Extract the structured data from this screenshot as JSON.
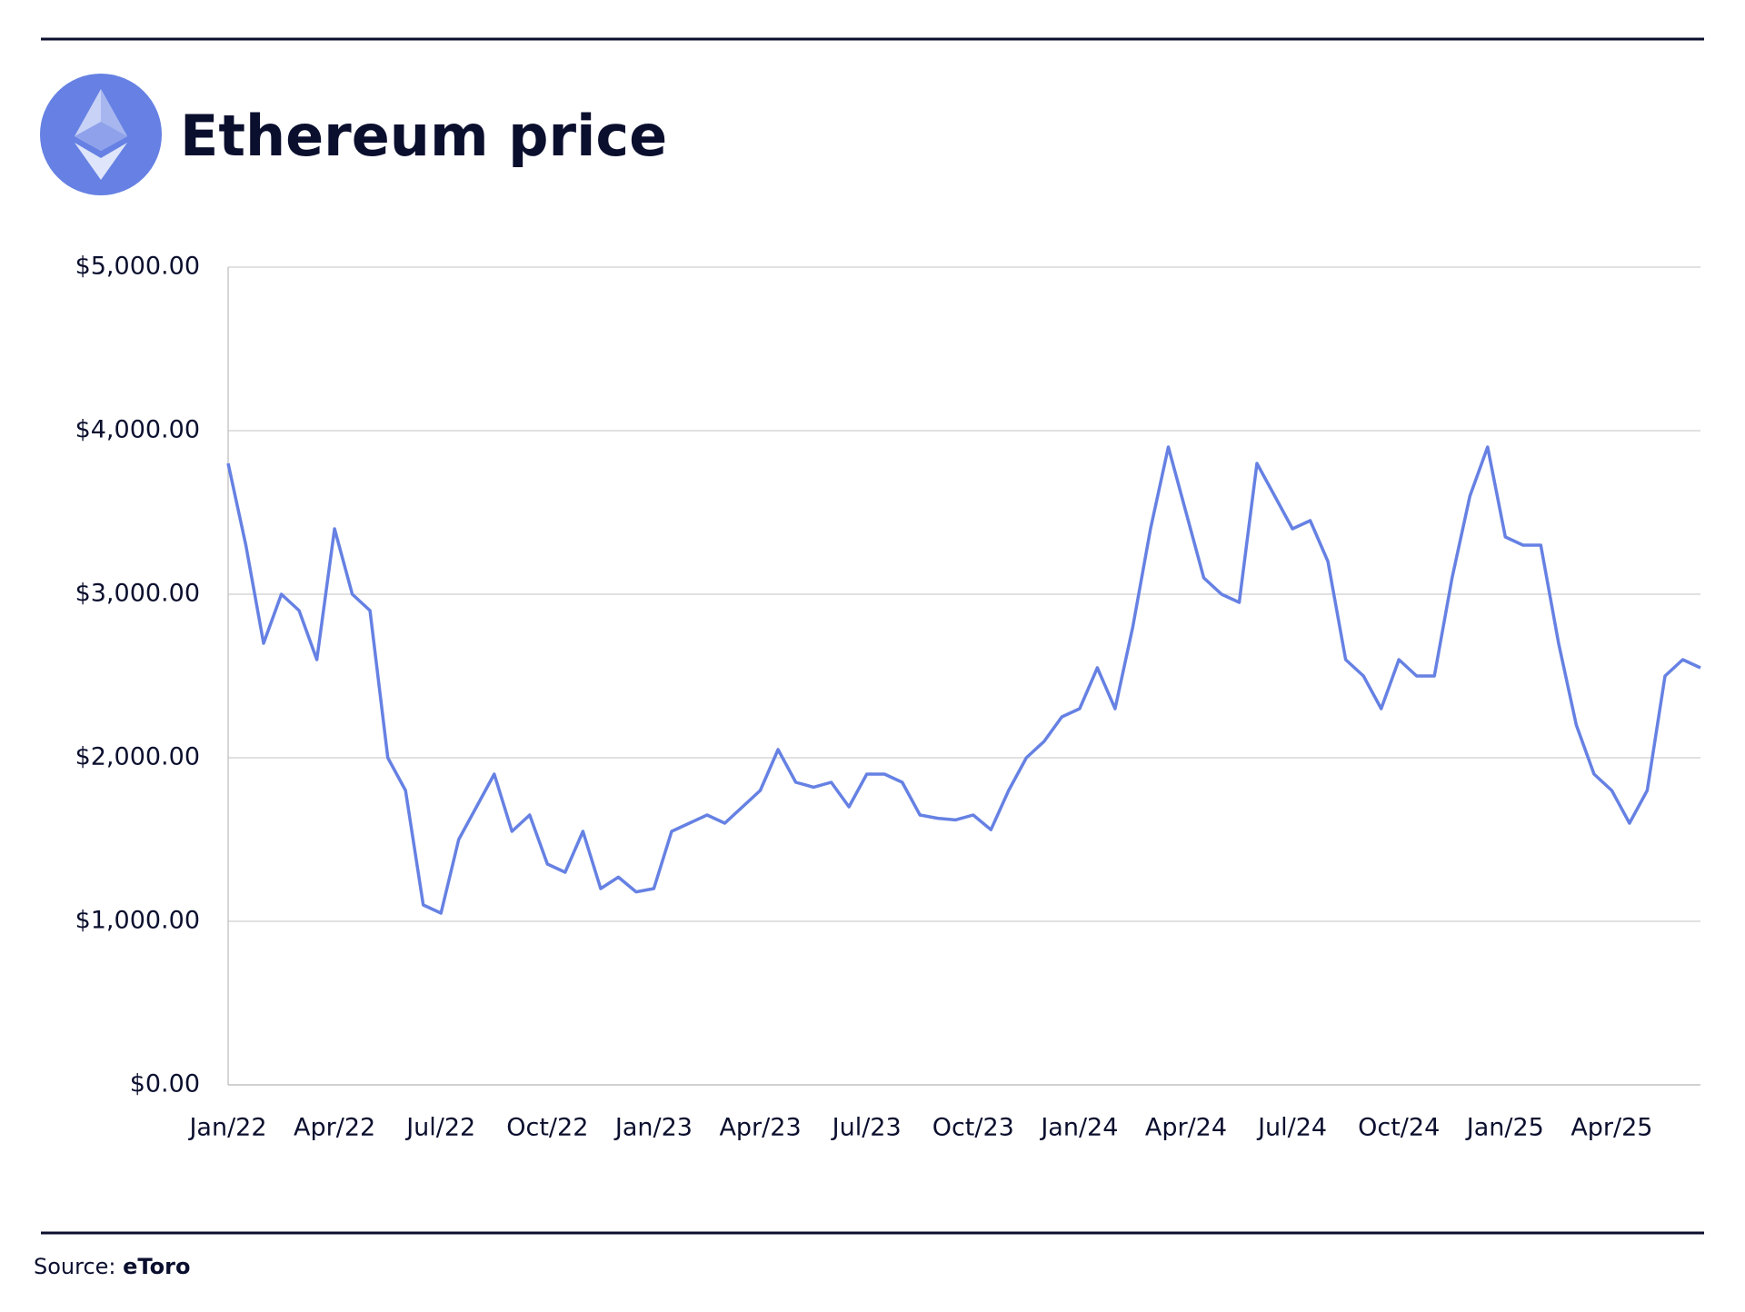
{
  "chart_data": {
    "type": "line",
    "title": "Ethereum price",
    "source_label": "Source:",
    "source": "eToro",
    "categories": [
      "Jan/22",
      null,
      null,
      null,
      null,
      null,
      "Apr/22",
      null,
      null,
      null,
      null,
      null,
      "Jul/22",
      null,
      null,
      null,
      null,
      null,
      "Oct/22",
      null,
      null,
      null,
      null,
      null,
      "Jan/23",
      null,
      null,
      null,
      null,
      null,
      "Apr/23",
      null,
      null,
      null,
      null,
      null,
      "Jul/23",
      null,
      null,
      null,
      null,
      null,
      "Oct/23",
      null,
      null,
      null,
      null,
      null,
      "Jan/24",
      null,
      null,
      null,
      null,
      null,
      "Apr/24",
      null,
      null,
      null,
      null,
      null,
      "Jul/24",
      null,
      null,
      null,
      null,
      null,
      "Oct/24",
      null,
      null,
      null,
      null,
      null,
      "Jan/25",
      null,
      null,
      null,
      null,
      null,
      "Apr/25",
      null,
      null,
      null,
      null,
      null
    ],
    "series": [
      {
        "name": "Ethereum",
        "color": "#6681e3",
        "values": [
          3800,
          3300,
          2700,
          3000,
          2900,
          2600,
          3400,
          3000,
          2900,
          2000,
          1800,
          1100,
          1050,
          1500,
          1700,
          1900,
          1550,
          1650,
          1350,
          1300,
          1550,
          1200,
          1270,
          1180,
          1200,
          1550,
          1600,
          1650,
          1600,
          1700,
          1800,
          2050,
          1850,
          1820,
          1850,
          1700,
          1900,
          1900,
          1850,
          1650,
          1630,
          1620,
          1650,
          1560,
          1800,
          2000,
          2100,
          2250,
          2300,
          2550,
          2300,
          2800,
          3400,
          3900,
          3500,
          3100,
          3000,
          2950,
          3800,
          3600,
          3400,
          3450,
          3200,
          2600,
          2500,
          2300,
          2600,
          2500,
          2500,
          3100,
          3600,
          3900,
          3350,
          3300,
          3300,
          2700,
          2200,
          1900,
          1800,
          1600,
          1800,
          2500,
          2600,
          2550
        ]
      }
    ],
    "ylim": [
      0,
      5000
    ],
    "yticks": [
      {
        "value": 0,
        "label": "$0.00"
      },
      {
        "value": 1000,
        "label": "$1,000.00"
      },
      {
        "value": 2000,
        "label": "$2,000.00"
      },
      {
        "value": 3000,
        "label": "$3,000.00"
      },
      {
        "value": 4000,
        "label": "$4,000.00"
      },
      {
        "value": 5000,
        "label": "$5,000.00"
      }
    ],
    "grid": true
  }
}
